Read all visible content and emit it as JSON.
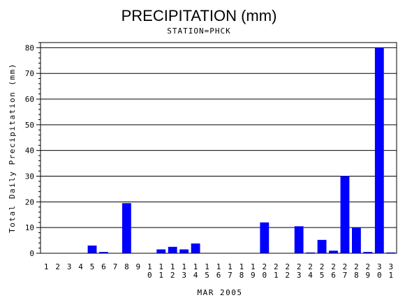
{
  "chart_data": {
    "type": "bar",
    "title": "PRECIPITATION (mm)",
    "subtitle": "STATION=PHCK",
    "xlabel": "MAR 2005",
    "ylabel": "Total Daily Precipitation (mm)",
    "ylim": [
      0,
      82
    ],
    "yticks": [
      0,
      10,
      20,
      30,
      40,
      50,
      60,
      70,
      80
    ],
    "grid": true,
    "bar_color": "#0000ff",
    "categories": [
      "1",
      "2",
      "3",
      "4",
      "5",
      "6",
      "7",
      "8",
      "9",
      "10",
      "11",
      "12",
      "13",
      "14",
      "15",
      "16",
      "17",
      "18",
      "19",
      "20",
      "21",
      "22",
      "23",
      "24",
      "25",
      "26",
      "27",
      "28",
      "29",
      "30",
      "31"
    ],
    "values": [
      0,
      0,
      0,
      0,
      3.0,
      0.5,
      0,
      19.5,
      0,
      0,
      1.5,
      2.5,
      1.5,
      3.8,
      0,
      0,
      0,
      0,
      0,
      12.0,
      0,
      0,
      10.5,
      0.3,
      5.2,
      1.0,
      30.0,
      10.0,
      0.5,
      80.0,
      0.3
    ]
  }
}
